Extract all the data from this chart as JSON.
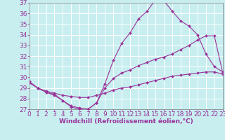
{
  "xlabel": "Windchill (Refroidissement éolien,°C)",
  "xlim": [
    0,
    23
  ],
  "ylim": [
    27,
    37
  ],
  "yticks": [
    27,
    28,
    29,
    30,
    31,
    32,
    33,
    34,
    35,
    36,
    37
  ],
  "xticks": [
    0,
    1,
    2,
    3,
    4,
    5,
    6,
    7,
    8,
    9,
    10,
    11,
    12,
    13,
    14,
    15,
    16,
    17,
    18,
    19,
    20,
    21,
    22,
    23
  ],
  "bg_color": "#c8eef0",
  "line_color": "#993399",
  "grid_color": "#ffffff",
  "line1_x": [
    0,
    1,
    2,
    3,
    4,
    5,
    6,
    7,
    8,
    9,
    10,
    11,
    12,
    13,
    14,
    15,
    16,
    17,
    18,
    19,
    20,
    21,
    22,
    23
  ],
  "line1_y": [
    29.6,
    29.0,
    28.6,
    28.3,
    27.8,
    27.2,
    27.0,
    27.0,
    27.6,
    29.4,
    31.6,
    33.2,
    34.2,
    35.5,
    36.2,
    37.3,
    37.2,
    36.2,
    35.3,
    34.8,
    34.0,
    32.2,
    31.0,
    30.5
  ],
  "line2_x": [
    0,
    1,
    2,
    3,
    4,
    5,
    6,
    7,
    8,
    9,
    10,
    11,
    12,
    13,
    14,
    15,
    16,
    17,
    18,
    19,
    20,
    21,
    22,
    23
  ],
  "line2_y": [
    29.5,
    29.0,
    28.6,
    28.4,
    27.8,
    27.3,
    27.1,
    27.0,
    27.6,
    29.0,
    29.9,
    30.4,
    30.7,
    31.1,
    31.4,
    31.7,
    31.9,
    32.2,
    32.6,
    33.0,
    33.5,
    33.9,
    33.9,
    30.4
  ],
  "line3_x": [
    0,
    1,
    2,
    3,
    4,
    5,
    6,
    7,
    8,
    9,
    10,
    11,
    12,
    13,
    14,
    15,
    16,
    17,
    18,
    19,
    20,
    21,
    22,
    23
  ],
  "line3_y": [
    29.5,
    29.0,
    28.7,
    28.5,
    28.3,
    28.2,
    28.1,
    28.1,
    28.3,
    28.5,
    28.8,
    29.0,
    29.1,
    29.3,
    29.5,
    29.7,
    29.9,
    30.1,
    30.2,
    30.3,
    30.4,
    30.5,
    30.5,
    30.3
  ],
  "tick_fontsize": 6.5,
  "xlabel_fontsize": 6.5
}
